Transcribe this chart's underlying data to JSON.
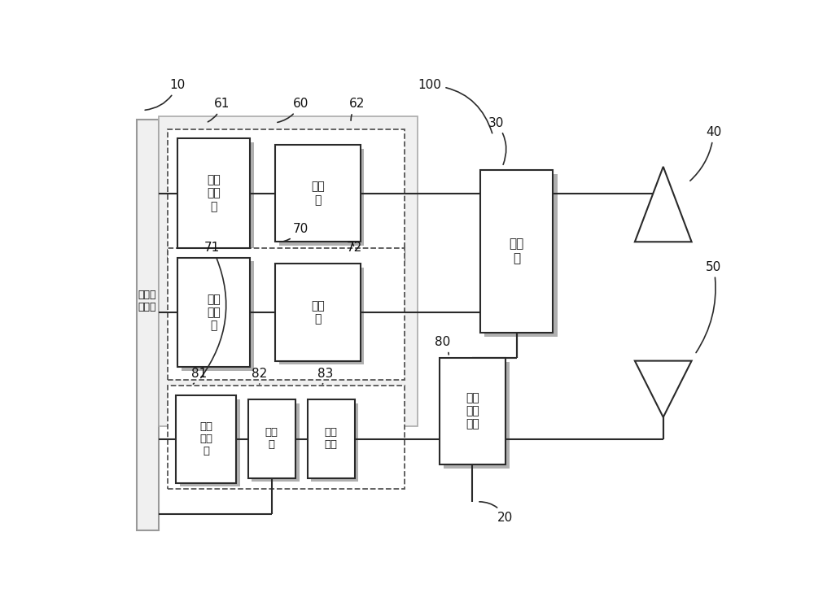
{
  "bg": "#ffffff",
  "lc": "#2a2a2a",
  "shadow_c": "#b0b0b0",
  "dashed_c": "#555555",
  "outer_c": "#aaaaaa",
  "outer_fc": "#f0f0f0",
  "text_rf": "射频收\n发模块",
  "text_pa": "功率\n放大\n器",
  "text_dup": "双工\n器",
  "text_flt": "滤波\n模块",
  "text_comb": "合路\n器",
  "text_sw": "信号\n切换\n开关",
  "n10": "10",
  "n20": "20",
  "n30": "30",
  "n40": "40",
  "n50": "50",
  "n60": "60",
  "n61": "61",
  "n62": "62",
  "n70": "70",
  "n71": "71",
  "n72": "72",
  "n80": "80",
  "n81": "81",
  "n82": "82",
  "n83": "83",
  "n100": "100"
}
